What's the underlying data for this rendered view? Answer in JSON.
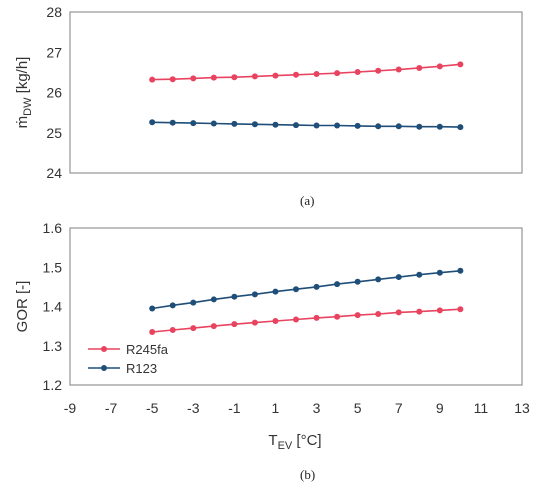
{
  "chart_data": [
    {
      "type": "line",
      "caption": "(a)",
      "ylabel": "ṁ",
      "ylabel_sub": "DW",
      "ylabel_unit": " [kg/h]",
      "ylim": [
        24,
        28
      ],
      "yticks": [
        "24",
        "25",
        "26",
        "27",
        "28"
      ],
      "xlim": [
        -9,
        13
      ],
      "grid": false,
      "series": [
        {
          "color": "#e8435f",
          "x": [
            -5,
            -4,
            -3,
            -2,
            -1,
            0,
            1,
            2,
            3,
            4,
            5,
            6,
            7,
            8,
            9,
            10
          ],
          "values": [
            26.32,
            26.33,
            26.35,
            26.37,
            26.38,
            26.4,
            26.42,
            26.44,
            26.46,
            26.48,
            26.51,
            26.54,
            26.57,
            26.61,
            26.65,
            26.7
          ]
        },
        {
          "color": "#1f4e79",
          "x": [
            -5,
            -4,
            -3,
            -2,
            -1,
            0,
            1,
            2,
            3,
            4,
            5,
            6,
            7,
            8,
            9,
            10
          ],
          "values": [
            25.26,
            25.25,
            25.24,
            25.23,
            25.22,
            25.21,
            25.2,
            25.19,
            25.18,
            25.18,
            25.17,
            25.16,
            25.16,
            25.15,
            25.15,
            25.14
          ]
        }
      ]
    },
    {
      "type": "line",
      "caption": "(b)",
      "ylabel": "GOR [-]",
      "xlabel": "T",
      "xlabel_sub": "EV",
      "xlabel_unit": " [°C]",
      "ylim": [
        1.2,
        1.6
      ],
      "yticks": [
        "1.2",
        "1.3",
        "1.4",
        "1.5",
        "1.6"
      ],
      "xlim": [
        -9,
        13
      ],
      "xticks": [
        "-9",
        "-7",
        "-5",
        "-3",
        "-1",
        "1",
        "3",
        "5",
        "7",
        "9",
        "11",
        "13"
      ],
      "grid": false,
      "legend_position": "bottom-left",
      "series": [
        {
          "name": "R245fa",
          "color": "#e8435f",
          "x": [
            -5,
            -4,
            -3,
            -2,
            -1,
            0,
            1,
            2,
            3,
            4,
            5,
            6,
            7,
            8,
            9,
            10
          ],
          "values": [
            1.335,
            1.34,
            1.345,
            1.35,
            1.355,
            1.359,
            1.363,
            1.367,
            1.371,
            1.374,
            1.378,
            1.381,
            1.385,
            1.387,
            1.39,
            1.393
          ]
        },
        {
          "name": "R123",
          "color": "#1f4e79",
          "x": [
            -5,
            -4,
            -3,
            -2,
            -1,
            0,
            1,
            2,
            3,
            4,
            5,
            6,
            7,
            8,
            9,
            10
          ],
          "values": [
            1.395,
            1.403,
            1.41,
            1.418,
            1.425,
            1.431,
            1.438,
            1.444,
            1.45,
            1.457,
            1.463,
            1.469,
            1.475,
            1.481,
            1.486,
            1.491
          ]
        }
      ]
    }
  ]
}
